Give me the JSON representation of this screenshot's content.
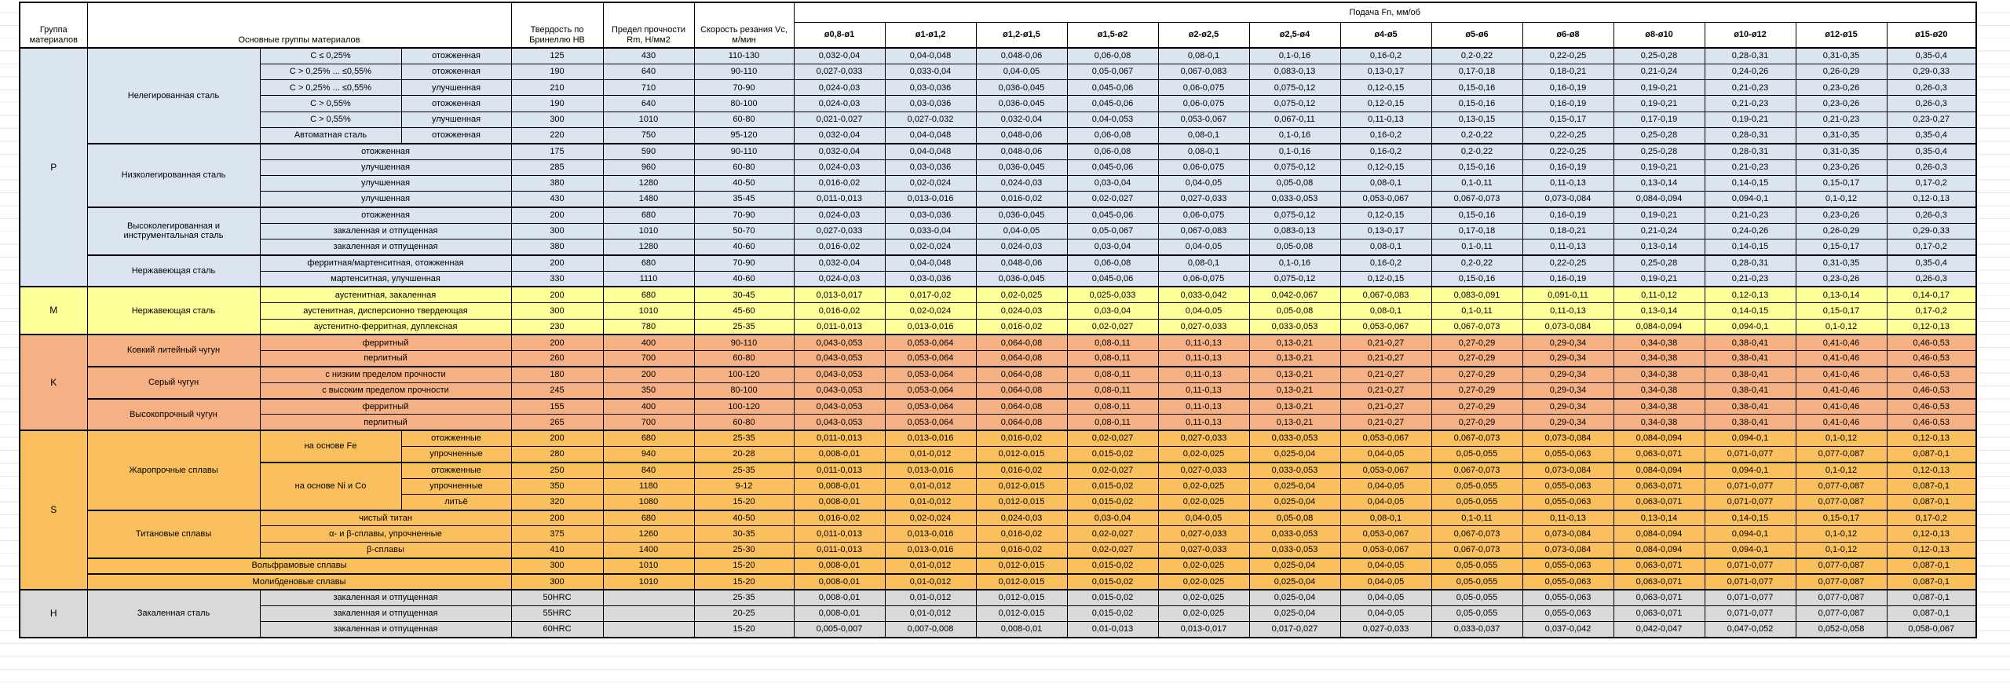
{
  "header": {
    "group_col": "Группа материалов",
    "materials_col": "Основные группы материалов",
    "hardness_col": "Твердость по Бринеллю HB",
    "strength_col": "Предел прочности Rm, Н/мм2",
    "speed_col": "Скорость резания Vc, м/мин",
    "feed_title": "Подача Fn, мм/об",
    "feed_cols": [
      "ø0,8-ø1",
      "ø1-ø1,2",
      "ø1,2-ø1,5",
      "ø1,5-ø2",
      "ø2-ø2,5",
      "ø2,5-ø4",
      "ø4-ø5",
      "ø5-ø6",
      "ø6-ø8",
      "ø8-ø10",
      "ø10-ø12",
      "ø12-ø15",
      "ø15-ø20"
    ]
  },
  "feed_patterns": {
    "A": [
      "0,032-0,04",
      "0,04-0,048",
      "0,048-0,06",
      "0,06-0,08",
      "0,08-0,1",
      "0,1-0,16",
      "0,16-0,2",
      "0,2-0,22",
      "0,22-0,25",
      "0,25-0,28",
      "0,28-0,31",
      "0,31-0,35",
      "0,35-0,4"
    ],
    "B": [
      "0,027-0,033",
      "0,033-0,04",
      "0,04-0,05",
      "0,05-0,067",
      "0,067-0,083",
      "0,083-0,13",
      "0,13-0,17",
      "0,17-0,18",
      "0,18-0,21",
      "0,21-0,24",
      "0,24-0,26",
      "0,26-0,29",
      "0,29-0,33"
    ],
    "C": [
      "0,024-0,03",
      "0,03-0,036",
      "0,036-0,045",
      "0,045-0,06",
      "0,06-0,075",
      "0,075-0,12",
      "0,12-0,15",
      "0,15-0,16",
      "0,16-0,19",
      "0,19-0,21",
      "0,21-0,23",
      "0,23-0,26",
      "0,26-0,3"
    ],
    "D": [
      "0,021-0,027",
      "0,027-0,032",
      "0,032-0,04",
      "0,04-0,053",
      "0,053-0,067",
      "0,067-0,11",
      "0,11-0,13",
      "0,13-0,15",
      "0,15-0,17",
      "0,17-0,19",
      "0,19-0,21",
      "0,21-0,23",
      "0,23-0,27"
    ],
    "E": [
      "0,016-0,02",
      "0,02-0,024",
      "0,024-0,03",
      "0,03-0,04",
      "0,04-0,05",
      "0,05-0,08",
      "0,08-0,1",
      "0,1-0,11",
      "0,11-0,13",
      "0,13-0,14",
      "0,14-0,15",
      "0,15-0,17",
      "0,17-0,2"
    ],
    "F": [
      "0,011-0,013",
      "0,013-0,016",
      "0,016-0,02",
      "0,02-0,027",
      "0,027-0,033",
      "0,033-0,053",
      "0,053-0,067",
      "0,067-0,073",
      "0,073-0,084",
      "0,084-0,094",
      "0,094-0,1",
      "0,1-0,12",
      "0,12-0,13"
    ],
    "G": [
      "0,013-0,017",
      "0,017-0,02",
      "0,02-0,025",
      "0,025-0,033",
      "0,033-0,042",
      "0,042-0,067",
      "0,067-0,083",
      "0,083-0,091",
      "0,091-0,11",
      "0,11-0,12",
      "0,12-0,13",
      "0,13-0,14",
      "0,14-0,17"
    ],
    "H": [
      "0,043-0,053",
      "0,053-0,064",
      "0,064-0,08",
      "0,08-0,11",
      "0,11-0,13",
      "0,13-0,21",
      "0,21-0,27",
      "0,27-0,29",
      "0,29-0,34",
      "0,34-0,38",
      "0,38-0,41",
      "0,41-0,46",
      "0,46-0,53"
    ],
    "I": [
      "0,008-0,01",
      "0,01-0,012",
      "0,012-0,015",
      "0,015-0,02",
      "0,02-0,025",
      "0,025-0,04",
      "0,04-0,05",
      "0,05-0,055",
      "0,055-0,063",
      "0,063-0,071",
      "0,071-0,077",
      "0,077-0,087",
      "0,087-0,1"
    ],
    "J": [
      "0,005-0,007",
      "0,007-0,008",
      "0,008-0,01",
      "0,01-0,013",
      "0,013-0,017",
      "0,017-0,027",
      "0,027-0,033",
      "0,033-0,037",
      "0,037-0,042",
      "0,042-0,047",
      "0,047-0,052",
      "0,052-0,058",
      "0,058-0,067"
    ]
  },
  "sections": [
    {
      "group": "P",
      "color": "#DBE5F1",
      "rows": [
        {
          "cells": [
            {
              "t": "Нелегированная сталь",
              "rs": 6
            },
            {
              "t": "С ≤ 0,25%"
            },
            {
              "t": "отожженная"
            }
          ],
          "hb": "125",
          "rm": "430",
          "vc": "110-130",
          "fp": "A"
        },
        {
          "cells": [
            {
              "t": "С > 0,25% ... ≤0,55%"
            },
            {
              "t": "отожженная"
            }
          ],
          "hb": "190",
          "rm": "640",
          "vc": "90-110",
          "fp": "B"
        },
        {
          "cells": [
            {
              "t": "С > 0,25% ... ≤0,55%"
            },
            {
              "t": "улучшенная"
            }
          ],
          "hb": "210",
          "rm": "710",
          "vc": "70-90",
          "fp": "C"
        },
        {
          "cells": [
            {
              "t": "С > 0,55%"
            },
            {
              "t": "отожженная"
            }
          ],
          "hb": "190",
          "rm": "640",
          "vc": "80-100",
          "fp": "C"
        },
        {
          "cells": [
            {
              "t": "С > 0,55%"
            },
            {
              "t": "улучшенная"
            }
          ],
          "hb": "300",
          "rm": "1010",
          "vc": "60-80",
          "fp": "D"
        },
        {
          "cells": [
            {
              "t": "Автоматная сталь"
            },
            {
              "t": "отожженная"
            }
          ],
          "hb": "220",
          "rm": "750",
          "vc": "95-120",
          "fp": "A"
        },
        {
          "tb": true,
          "cells": [
            {
              "t": "Низколегированная сталь",
              "rs": 4
            },
            {
              "t": "отожженная",
              "cs": 2
            }
          ],
          "hb": "175",
          "rm": "590",
          "vc": "90-110",
          "fp": "A"
        },
        {
          "cells": [
            {
              "t": "улучшенная",
              "cs": 2
            }
          ],
          "hb": "285",
          "rm": "960",
          "vc": "60-80",
          "fp": "C"
        },
        {
          "cells": [
            {
              "t": "улучшенная",
              "cs": 2
            }
          ],
          "hb": "380",
          "rm": "1280",
          "vc": "40-50",
          "fp": "E"
        },
        {
          "cells": [
            {
              "t": "улучшенная",
              "cs": 2
            }
          ],
          "hb": "430",
          "rm": "1480",
          "vc": "35-45",
          "fp": "F"
        },
        {
          "tb": true,
          "cells": [
            {
              "t": "Высоколегированная и инструментальная сталь",
              "rs": 3
            },
            {
              "t": "отожженная",
              "cs": 2
            }
          ],
          "hb": "200",
          "rm": "680",
          "vc": "70-90",
          "fp": "C"
        },
        {
          "cells": [
            {
              "t": "закаленная и отпущенная",
              "cs": 2
            }
          ],
          "hb": "300",
          "rm": "1010",
          "vc": "50-70",
          "fp": "B"
        },
        {
          "cells": [
            {
              "t": "закаленная и отпущенная",
              "cs": 2
            }
          ],
          "hb": "380",
          "rm": "1280",
          "vc": "40-60",
          "fp": "E"
        },
        {
          "tb": true,
          "cells": [
            {
              "t": "Нержавеющая сталь",
              "rs": 2
            },
            {
              "t": "ферритная/мартенситная, отожженная",
              "cs": 2
            }
          ],
          "hb": "200",
          "rm": "680",
          "vc": "70-90",
          "fp": "A"
        },
        {
          "cells": [
            {
              "t": "мартенситная, улучшенная",
              "cs": 2
            }
          ],
          "hb": "330",
          "rm": "1110",
          "vc": "40-60",
          "fp": "C"
        }
      ]
    },
    {
      "group": "M",
      "color": "#FFFF99",
      "rows": [
        {
          "cells": [
            {
              "t": "Нержавеющая сталь",
              "rs": 3
            },
            {
              "t": "аустенитная, закаленная",
              "cs": 2
            }
          ],
          "hb": "200",
          "rm": "680",
          "vc": "30-45",
          "fp": "G"
        },
        {
          "cells": [
            {
              "t": "аустенитная, дисперсионно твердеющая",
              "cs": 2
            }
          ],
          "hb": "300",
          "rm": "1010",
          "vc": "45-60",
          "fp": "E"
        },
        {
          "cells": [
            {
              "t": "аустенитно-ферритная, дуплексная",
              "cs": 2
            }
          ],
          "hb": "230",
          "rm": "780",
          "vc": "25-35",
          "fp": "F"
        }
      ]
    },
    {
      "group": "K",
      "color": "#F5B183",
      "rows": [
        {
          "cells": [
            {
              "t": "Ковкий литейный чугун",
              "rs": 2
            },
            {
              "t": "ферритный",
              "cs": 2
            }
          ],
          "hb": "200",
          "rm": "400",
          "vc": "90-110",
          "fp": "H"
        },
        {
          "cells": [
            {
              "t": "перлитный",
              "cs": 2
            }
          ],
          "hb": "260",
          "rm": "700",
          "vc": "60-80",
          "fp": "H"
        },
        {
          "tb": true,
          "cells": [
            {
              "t": "Серый чугун",
              "rs": 2
            },
            {
              "t": "с низким пределом прочности",
              "cs": 2
            }
          ],
          "hb": "180",
          "rm": "200",
          "vc": "100-120",
          "fp": "H"
        },
        {
          "cells": [
            {
              "t": "с высоким пределом прочности",
              "cs": 2
            }
          ],
          "hb": "245",
          "rm": "350",
          "vc": "80-100",
          "fp": "H"
        },
        {
          "tb": true,
          "cells": [
            {
              "t": "Высокопрочный чугун",
              "rs": 2
            },
            {
              "t": "ферритный",
              "cs": 2
            }
          ],
          "hb": "155",
          "rm": "400",
          "vc": "100-120",
          "fp": "H"
        },
        {
          "cells": [
            {
              "t": "перлитный",
              "cs": 2
            }
          ],
          "hb": "265",
          "rm": "700",
          "vc": "60-80",
          "fp": "H"
        }
      ]
    },
    {
      "group": "S",
      "color": "#FAC05E",
      "rows": [
        {
          "cells": [
            {
              "t": "Жаропрочные сплавы",
              "rs": 5
            },
            {
              "t": "на основе Fe",
              "rs": 2
            },
            {
              "t": "отожженные"
            }
          ],
          "hb": "200",
          "rm": "680",
          "vc": "25-35",
          "fp": "F"
        },
        {
          "cells": [
            {
              "t": "упрочненные"
            }
          ],
          "hb": "280",
          "rm": "940",
          "vc": "20-28",
          "fp": "I"
        },
        {
          "tb": true,
          "cells": [
            {
              "t": "на основе Ni и Co",
              "rs": 3
            },
            {
              "t": "отожженные"
            }
          ],
          "hb": "250",
          "rm": "840",
          "vc": "25-35",
          "fp": "F"
        },
        {
          "cells": [
            {
              "t": "упрочненные"
            }
          ],
          "hb": "350",
          "rm": "1180",
          "vc": "9-12",
          "fp": "I"
        },
        {
          "cells": [
            {
              "t": "литьё"
            }
          ],
          "hb": "320",
          "rm": "1080",
          "vc": "15-20",
          "fp": "I"
        },
        {
          "tb": true,
          "cells": [
            {
              "t": "Титановые сплавы",
              "rs": 3
            },
            {
              "t": "чистый титан",
              "cs": 2
            }
          ],
          "hb": "200",
          "rm": "680",
          "vc": "40-50",
          "fp": "E"
        },
        {
          "cells": [
            {
              "t": "α- и β-сплавы, упрочненные",
              "cs": 2
            }
          ],
          "hb": "375",
          "rm": "1260",
          "vc": "30-35",
          "fp": "F"
        },
        {
          "cells": [
            {
              "t": "β-сплавы",
              "cs": 2
            }
          ],
          "hb": "410",
          "rm": "1400",
          "vc": "25-30",
          "fp": "F"
        },
        {
          "tb": true,
          "cells": [
            {
              "t": "Вольфрамовые сплавы",
              "cs": 3
            }
          ],
          "hb": "300",
          "rm": "1010",
          "vc": "15-20",
          "fp": "I"
        },
        {
          "tb": true,
          "cells": [
            {
              "t": "Молибденовые сплавы",
              "cs": 3
            }
          ],
          "hb": "300",
          "rm": "1010",
          "vc": "15-20",
          "fp": "I"
        }
      ]
    },
    {
      "group": "H",
      "color": "#D9D9D9",
      "rows": [
        {
          "cells": [
            {
              "t": "Закаленная сталь",
              "rs": 3
            },
            {
              "t": "закаленная и отпущенная",
              "cs": 2
            }
          ],
          "hb": "50HRC",
          "rm": "",
          "vc": "25-35",
          "fp": "I"
        },
        {
          "cells": [
            {
              "t": "закаленная и отпущенная",
              "cs": 2
            }
          ],
          "hb": "55HRC",
          "rm": "",
          "vc": "20-25",
          "fp": "I"
        },
        {
          "cells": [
            {
              "t": "закаленная и отпущенная",
              "cs": 2
            }
          ],
          "hb": "60HRC",
          "rm": "",
          "vc": "15-20",
          "fp": "J"
        }
      ]
    }
  ]
}
